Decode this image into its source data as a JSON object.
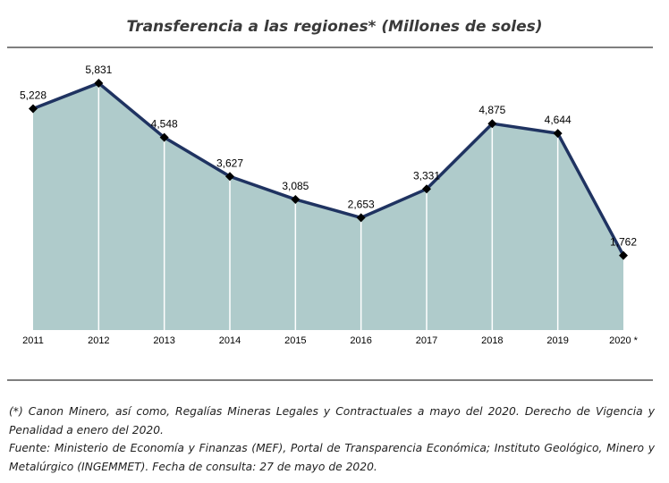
{
  "title": "Transferencia a las regiones* (Millones de soles)",
  "chart_data": {
    "type": "area",
    "categories": [
      "2011",
      "2012",
      "2013",
      "2014",
      "2015",
      "2016",
      "2017",
      "2018",
      "2019",
      "2020 *"
    ],
    "values": [
      5228,
      5831,
      4548,
      3627,
      3085,
      2653,
      3331,
      4875,
      4644,
      1762
    ],
    "data_labels": [
      "5,228",
      "5,831",
      "4,548",
      "3,627",
      "3,085",
      "2,653",
      "3,331",
      "4,875",
      "4,644",
      "1,762"
    ],
    "ylim": [
      0,
      6400
    ],
    "grid": false,
    "legend": "none",
    "colors": {
      "fill": "#afcbcb",
      "line": "#1f3361",
      "marker": "#000000",
      "dividers": "#ffffff"
    }
  },
  "footnotes": {
    "note": "(*) Canon Minero, así como, Regalías Mineras Legales y Contractuales a mayo del 2020. Derecho de Vigencia y Penalidad a enero del 2020.",
    "source": "Fuente: Ministerio de Economía y Finanzas (MEF), Portal de Transparencia Económica; Instituto Geológico, Minero y Metalúrgico (INGEMMET).  Fecha de consulta: 27 de mayo de 2020."
  }
}
